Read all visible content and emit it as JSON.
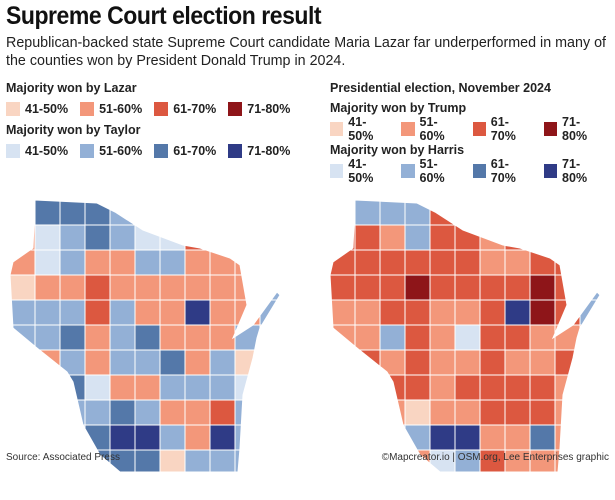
{
  "title": "Supreme Court election result",
  "subtitle": "Republican-backed state Supreme Court candidate Maria Lazar far underperformed in many of the counties won by President Donald Trump in 2024.",
  "colors": {
    "a": "#f9d5c2",
    "b": "#f3977a",
    "c": "#dc5840",
    "d": "#8e1519",
    "e": "#d7e3f2",
    "f": "#93b0d6",
    "g": "#5478a9",
    "h": "#2f3b86"
  },
  "legend_left": {
    "groups": [
      {
        "heading": "Majority won by Lazar",
        "items": [
          {
            "label": "41-50%",
            "color": "a"
          },
          {
            "label": "51-60%",
            "color": "b"
          },
          {
            "label": "61-70%",
            "color": "c"
          },
          {
            "label": "71-80%",
            "color": "d"
          }
        ]
      },
      {
        "heading": "Majority won by Taylor",
        "items": [
          {
            "label": "41-50%",
            "color": "e"
          },
          {
            "label": "51-60%",
            "color": "f"
          },
          {
            "label": "61-70%",
            "color": "g"
          },
          {
            "label": "71-80%",
            "color": "h"
          }
        ]
      }
    ]
  },
  "legend_right": {
    "title": "Presidential election, November 2024",
    "groups": [
      {
        "heading": "Majority won by Trump",
        "items": [
          {
            "label": "41-50%",
            "color": "a"
          },
          {
            "label": "51-60%",
            "color": "b"
          },
          {
            "label": "61-70%",
            "color": "c"
          },
          {
            "label": "71-80%",
            "color": "d"
          }
        ]
      },
      {
        "heading": "Majority won by Harris",
        "items": [
          {
            "label": "41-50%",
            "color": "e"
          },
          {
            "label": "51-60%",
            "color": "f"
          },
          {
            "label": "61-70%",
            "color": "g"
          },
          {
            "label": "71-80%",
            "color": "h"
          }
        ]
      }
    ]
  },
  "map_supreme_court": [
    "bgggfeebcbf",
    "befgfeeccbf",
    "befbbffbbbf",
    "abbcbbbbbbf",
    "fffcfbbhbbf",
    "ffgbfgbbbfb",
    "bbfbffgbfaa",
    "bfgebbfffee",
    "ffffgfbbcff",
    "fffghhfbhff",
    "fffggga ffff"
  ],
  "map_presidential": [
    "cfffccccdcf",
    "ccbfccbcdcf",
    "ccccccbbcccf",
    "cccdccccdcf",
    "bbccbbchdcf",
    "bbfcbeccbbc",
    "ccbcbbcbbcc",
    "bfccbccccbb",
    "bbbabbcccbb",
    "bbffhhbbgbb",
    "bbbbefcbbbb"
  ],
  "source": "Source: Associated Press",
  "credit": "©Mapcreator.io | OSM.org, Lee Enterprises graphic"
}
